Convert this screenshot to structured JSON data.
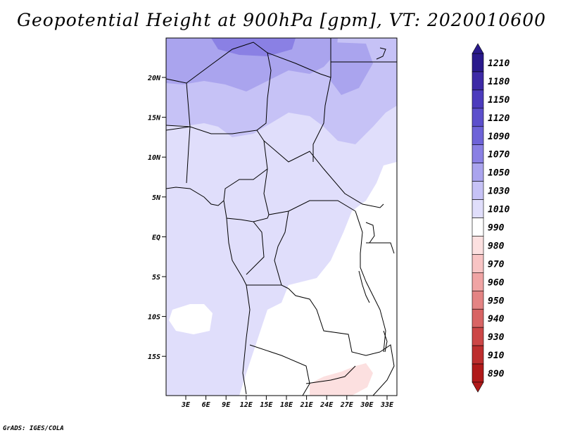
{
  "title": "Geopotential Height at 900hPa [gpm], VT: 2020010600",
  "credit": "GrADS: IGES/COLA",
  "map": {
    "lat_ticks": [
      "20N",
      "15N",
      "10N",
      "5N",
      "EQ",
      "5S",
      "10S",
      "15S"
    ],
    "lon_ticks": [
      "3E",
      "6E",
      "9E",
      "12E",
      "15E",
      "18E",
      "21E",
      "24E",
      "27E",
      "30E",
      "33E"
    ]
  },
  "colorbar": {
    "levels": [
      "1210",
      "1180",
      "1150",
      "1120",
      "1090",
      "1070",
      "1050",
      "1030",
      "1010",
      "990",
      "980",
      "970",
      "960",
      "950",
      "940",
      "930",
      "910",
      "890"
    ],
    "top_color": "#2a1a8c",
    "bottom_color": "#b01a1a",
    "colors": [
      "#2a1a8c",
      "#3d2aa6",
      "#4c3bbd",
      "#5c4fcc",
      "#6e63d8",
      "#8a80e4",
      "#aaa4ee",
      "#c6c2f6",
      "#e0defb",
      "#ffffff",
      "#fce0e0",
      "#f8c4c4",
      "#f0a4a4",
      "#e48484",
      "#d86464",
      "#cc4646",
      "#bd2e2e",
      "#b01a1a"
    ]
  }
}
